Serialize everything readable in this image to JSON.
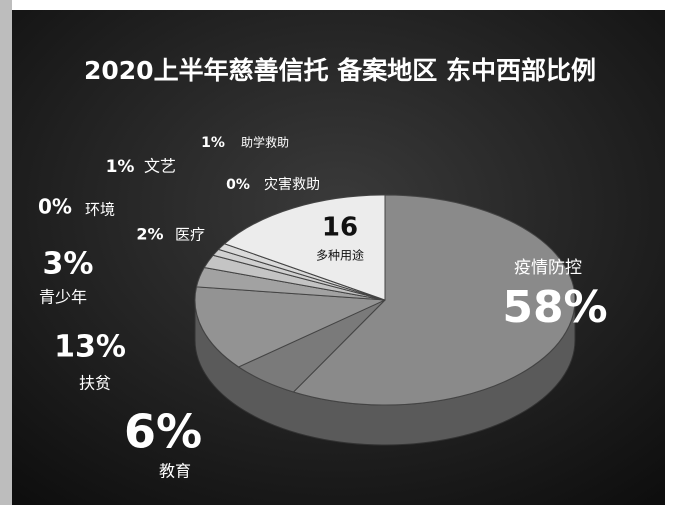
{
  "chart_data": {
    "type": "pie",
    "title": "2020上半年慈善信托 备案地区 东中西部比例",
    "categories": [
      "疫情防控",
      "教育",
      "扶贫",
      "青少年",
      "环境",
      "医疗",
      "文艺",
      "助学救助",
      "灾害救助",
      "多种用途"
    ],
    "values": [
      58,
      6,
      13,
      3,
      0,
      2,
      1,
      1,
      0,
      16
    ],
    "value_labels": [
      "58%",
      "6%",
      "13%",
      "3%",
      "0%",
      "2%",
      "1%",
      "1%",
      "0%",
      "16"
    ],
    "colors": [
      "#8a8a8a",
      "#7a7a7a",
      "#939393",
      "#a2a2a2",
      "#b5b5b5",
      "#c4c4c4",
      "#d0d0d0",
      "#dadada",
      "#e2e2e2",
      "#ececec"
    ]
  }
}
